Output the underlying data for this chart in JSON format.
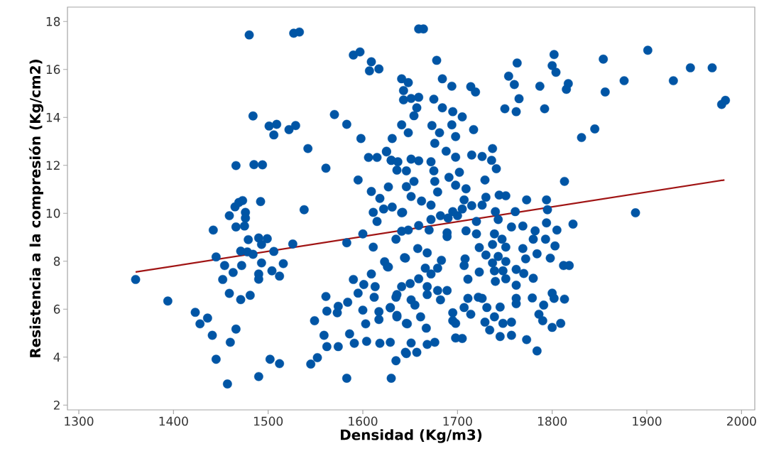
{
  "chart_data": {
    "type": "scatter",
    "xlabel": "Densidad (Kg/m3)",
    "ylabel": "Resistencia a la compresión (Kg/cm2)",
    "xlim": [
      1288,
      2014
    ],
    "ylim": [
      1.8,
      18.6
    ],
    "xticks": [
      1300,
      1400,
      1500,
      1600,
      1700,
      1800,
      1900,
      2000
    ],
    "yticks": [
      2,
      4,
      6,
      8,
      10,
      12,
      14,
      16,
      18
    ],
    "series": [
      {
        "type": "scatter",
        "marker": "circle",
        "color": "#0055a5",
        "x": [
          1360,
          1394,
          1423,
          1428,
          1436,
          1441,
          1445,
          1442,
          1445,
          1457,
          1460,
          1466,
          1452,
          1454,
          1459,
          1463,
          1471,
          1472,
          1481,
          1459,
          1465,
          1469,
          1473,
          1476,
          1476,
          1466,
          1475,
          1479,
          1471,
          1478,
          1484,
          1490,
          1499,
          1493,
          1506,
          1492,
          1493,
          1490,
          1490,
          1504,
          1512,
          1516,
          1526,
          1538,
          1490,
          1502,
          1512,
          1466,
          1485,
          1494,
          1484,
          1501,
          1509,
          1506,
          1522,
          1529,
          1480,
          1527,
          1533,
          1542,
          1561,
          1570,
          1583,
          1590,
          1597,
          1609,
          1607,
          1617,
          1598,
          1631,
          1606,
          1615,
          1625,
          1630,
          1636,
          1595,
          1609,
          1627,
          1618,
          1611,
          1615,
          1622,
          1631,
          1642,
          1600,
          1583,
          1611,
          1635,
          1645,
          1626,
          1609,
          1590,
          1601,
          1613,
          1595,
          1612,
          1561,
          1584,
          1574,
          1562,
          1573,
          1549,
          1600,
          1617,
          1617,
          1603,
          1635,
          1629,
          1636,
          1647,
          1559,
          1586,
          1591,
          1604,
          1618,
          1629,
          1562,
          1574,
          1635,
          1645,
          1545,
          1552,
          1583,
          1630,
          1659,
          1664,
          1678,
          1684,
          1694,
          1714,
          1719,
          1675,
          1684,
          1695,
          1705,
          1694,
          1698,
          1717,
          1673,
          1681,
          1676,
          1688,
          1698,
          1715,
          1726,
          1737,
          1736,
          1741,
          1729,
          1691,
          1702,
          1698,
          1709,
          1676,
          1679,
          1672,
          1675,
          1672,
          1682,
          1672,
          1690,
          1700,
          1705,
          1695,
          1707,
          1715,
          1726,
          1730,
          1744,
          1751,
          1740,
          1761,
          1773,
          1794,
          1795,
          1813,
          1822,
          1805,
          1794,
          1743,
          1757,
          1769,
          1782,
          1793,
          1803,
          1780,
          1709,
          1720,
          1720,
          1689,
          1689,
          1670,
          1659,
          1739,
          1747,
          1737,
          1751,
          1723,
          1769,
          1784,
          1798,
          1730,
          1743,
          1772,
          1751,
          1737,
          1812,
          1818,
          1708,
          1707,
          1683,
          1679,
          1666,
          1672,
          1723,
          1739,
          1748,
          1762,
          1770,
          1780,
          1711,
          1740,
          1751,
          1762,
          1659,
          1668,
          1668,
          1679,
          1689,
          1682,
          1711,
          1722,
          1726,
          1762,
          1762,
          1779,
          1800,
          1802,
          1813,
          1791,
          1731,
          1745,
          1707,
          1714,
          1695,
          1695,
          1698,
          1661,
          1667,
          1739,
          1729,
          1734,
          1748,
          1757,
          1745,
          1757,
          1786,
          1790,
          1800,
          1809,
          1773,
          1784,
          1698,
          1705,
          1676,
          1668,
          1657,
          1646,
          1651,
          1641,
          1648,
          1643,
          1643,
          1651,
          1659,
          1657,
          1654,
          1641,
          1648,
          1625,
          1630,
          1637,
          1651,
          1659,
          1646,
          1654,
          1646,
          1651,
          1662,
          1641,
          1648,
          1641,
          1658,
          1668,
          1644,
          1623,
          1627,
          1650,
          1641,
          1636,
          1651,
          1655,
          1646,
          1629,
          1636,
          1901,
          1854,
          1946,
          1969,
          1876,
          1928,
          1856,
          1983,
          1979,
          1845,
          1831,
          1888,
          1802,
          1800,
          1804,
          1787,
          1817,
          1815,
          1763,
          1754,
          1760,
          1765,
          1750,
          1762,
          1792
        ],
        "values": [
          7.24,
          6.34,
          5.87,
          5.39,
          5.63,
          4.91,
          3.91,
          9.3,
          8.18,
          2.88,
          4.62,
          5.17,
          7.24,
          7.82,
          6.66,
          7.53,
          6.4,
          7.82,
          6.58,
          9.9,
          10.27,
          10.45,
          10.53,
          10.04,
          9.8,
          9.43,
          9.47,
          8.9,
          8.42,
          8.39,
          8.29,
          8.97,
          8.94,
          8.7,
          8.41,
          10.49,
          7.93,
          7.47,
          7.25,
          7.6,
          7.38,
          7.9,
          8.72,
          10.15,
          3.19,
          3.91,
          3.73,
          11.99,
          12.03,
          12.02,
          14.06,
          13.64,
          13.71,
          13.27,
          13.49,
          13.66,
          17.44,
          17.51,
          17.56,
          12.7,
          11.88,
          14.12,
          13.71,
          16.6,
          16.73,
          16.32,
          15.94,
          16.02,
          13.12,
          13.12,
          12.33,
          12.33,
          12.56,
          12.21,
          11.8,
          11.39,
          10.91,
          11.1,
          10.62,
          10.04,
          9.66,
          10.18,
          10.26,
          10.04,
          9.14,
          8.77,
          8.59,
          8.92,
          8.13,
          7.77,
          7.47,
          7.24,
          7.03,
          6.94,
          6.67,
          6.5,
          6.53,
          6.29,
          6.12,
          5.92,
          5.85,
          5.52,
          5.96,
          5.9,
          5.57,
          5.39,
          6.5,
          6.06,
          5.68,
          5.39,
          4.91,
          4.97,
          4.58,
          4.66,
          4.58,
          4.62,
          4.44,
          4.44,
          3.85,
          4.2,
          3.71,
          3.98,
          3.12,
          3.12,
          17.69,
          17.69,
          16.38,
          15.61,
          15.3,
          15.28,
          15.06,
          14.76,
          14.4,
          14.24,
          14.02,
          13.69,
          13.2,
          13.49,
          13.66,
          13.36,
          12.92,
          12.59,
          12.34,
          12.43,
          12.37,
          12.7,
          12.21,
          11.86,
          11.39,
          11.5,
          11.71,
          11.17,
          11.02,
          11.33,
          10.89,
          12.15,
          11.77,
          10.34,
          9.9,
          9.74,
          9.8,
          9.9,
          10.18,
          10.07,
          10.56,
          10.32,
          10.34,
          10.67,
          10.76,
          10.73,
          10.07,
          10.07,
          10.56,
          10.56,
          10.15,
          11.33,
          9.55,
          9.3,
          9.6,
          9.74,
          9.43,
          9.47,
          9.27,
          8.92,
          8.64,
          8.92,
          9.27,
          9.66,
          9.14,
          9.19,
          9.03,
          9.3,
          9.49,
          9.14,
          8.92,
          8.7,
          8.59,
          8.57,
          8.53,
          8.31,
          8.13,
          8.26,
          8.2,
          8.1,
          7.99,
          7.93,
          7.82,
          7.82,
          8.1,
          7.82,
          8.04,
          7.71,
          7.71,
          7.47,
          7.55,
          7.6,
          7.6,
          7.66,
          7.49,
          7.29,
          7.25,
          7.16,
          7.27,
          7.0,
          7.27,
          6.94,
          6.61,
          6.78,
          6.78,
          6.39,
          6.45,
          6.5,
          6.45,
          6.45,
          6.23,
          6.47,
          6.67,
          6.45,
          6.42,
          6.17,
          6.07,
          6.09,
          6.07,
          5.79,
          5.85,
          5.52,
          5.41,
          5.68,
          5.21,
          5.68,
          5.46,
          5.13,
          5.41,
          5.46,
          4.86,
          4.91,
          5.79,
          5.52,
          5.24,
          5.41,
          4.73,
          4.26,
          4.8,
          4.78,
          4.62,
          4.53,
          4.2,
          4.15,
          4.59,
          15.61,
          15.45,
          15.12,
          14.73,
          14.79,
          14.84,
          14.4,
          14.07,
          13.69,
          13.36,
          12.59,
          12.21,
          12.15,
          12.26,
          12.19,
          11.77,
          11.33,
          11.11,
          10.7,
          10.51,
          10.02,
          9.3,
          9.25,
          8.53,
          8.35,
          8.15,
          7.98,
          7.76,
          7.07,
          6.94,
          6.61,
          6.39,
          6.17,
          5.41,
          6.07,
          5.74,
          16.8,
          16.43,
          16.07,
          16.07,
          15.53,
          15.53,
          15.06,
          14.71,
          14.54,
          13.52,
          13.16,
          10.02,
          16.62,
          16.16,
          15.88,
          15.3,
          15.41,
          15.17,
          16.27,
          15.72,
          15.37,
          14.78,
          14.36,
          14.24,
          14.36
        ]
      },
      {
        "type": "line",
        "marker": "none",
        "color": "#a01414",
        "x": [
          1360,
          1982
        ],
        "values": [
          7.55,
          11.39
        ]
      }
    ]
  }
}
